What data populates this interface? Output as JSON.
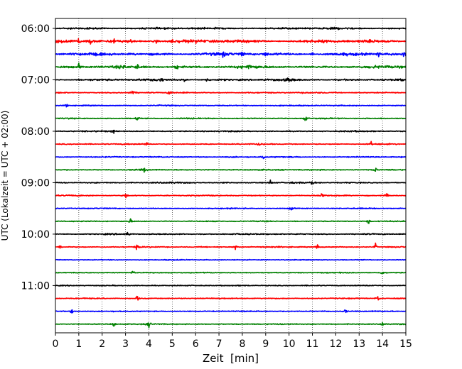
{
  "chart_data": {
    "type": "line",
    "title": "",
    "xlabel": "Zeit  [min]",
    "ylabel": "UTC (Lokalzeit = UTC + 02:00)",
    "xlim": [
      0,
      15
    ],
    "x_ticks": [
      "0",
      "1",
      "2",
      "3",
      "4",
      "5",
      "6",
      "7",
      "8",
      "9",
      "10",
      "11",
      "12",
      "13",
      "14",
      "15"
    ],
    "y_tick_labels": [
      "06:00",
      "07:00",
      "08:00",
      "09:00",
      "10:00",
      "11:00"
    ],
    "trace_start": "06:00",
    "trace_interval_min": 15,
    "trace_count": 24,
    "color_cycle": [
      "#000000",
      "#ff0000",
      "#0000ff",
      "#008000"
    ],
    "grid": "vertical dotted at each minute",
    "notable_events": [
      {
        "trace": "06:15",
        "minutes": [
          1.0,
          1.5,
          2.5,
          3.2,
          4.3,
          5.0,
          6.0
        ]
      },
      {
        "trace": "06:30",
        "minutes": [
          7.2,
          8.0,
          9.0,
          11.0,
          13.8,
          14.9
        ]
      },
      {
        "trace": "06:45",
        "minutes": [
          1.0,
          3.5,
          5.2,
          8.3
        ]
      },
      {
        "trace": "07:00",
        "minutes": [
          4.5,
          5.5,
          6.5,
          10.0
        ]
      },
      {
        "trace": "07:15",
        "minutes": [
          3.3,
          4.9
        ]
      },
      {
        "trace": "07:30",
        "minutes": [
          0.5
        ]
      },
      {
        "trace": "07:45",
        "minutes": [
          3.5,
          10.7
        ]
      },
      {
        "trace": "08:00",
        "minutes": [
          2.5
        ]
      },
      {
        "trace": "08:15",
        "minutes": [
          3.9,
          8.7,
          13.5
        ]
      },
      {
        "trace": "08:30",
        "minutes": [
          8.9
        ]
      },
      {
        "trace": "08:45",
        "minutes": [
          3.8,
          13.7
        ]
      },
      {
        "trace": "09:00",
        "minutes": [
          9.2,
          11.0
        ]
      },
      {
        "trace": "09:15",
        "minutes": [
          3.0,
          11.4,
          14.2
        ]
      },
      {
        "trace": "09:30",
        "minutes": [
          10.1
        ]
      },
      {
        "trace": "09:45",
        "minutes": [
          3.2,
          13.4
        ]
      },
      {
        "trace": "10:00",
        "minutes": [
          3.1
        ]
      },
      {
        "trace": "10:15",
        "minutes": [
          0.2,
          3.5,
          7.7,
          11.2,
          13.7
        ]
      },
      {
        "trace": "10:30",
        "minutes": []
      },
      {
        "trace": "10:45",
        "minutes": [
          3.3,
          14.0
        ]
      },
      {
        "trace": "11:00",
        "minutes": []
      },
      {
        "trace": "11:15",
        "minutes": [
          3.5,
          13.8
        ]
      },
      {
        "trace": "11:30",
        "minutes": [
          0.7,
          12.4
        ]
      },
      {
        "trace": "11:45",
        "minutes": [
          2.5,
          4.0,
          14.0
        ]
      }
    ]
  }
}
